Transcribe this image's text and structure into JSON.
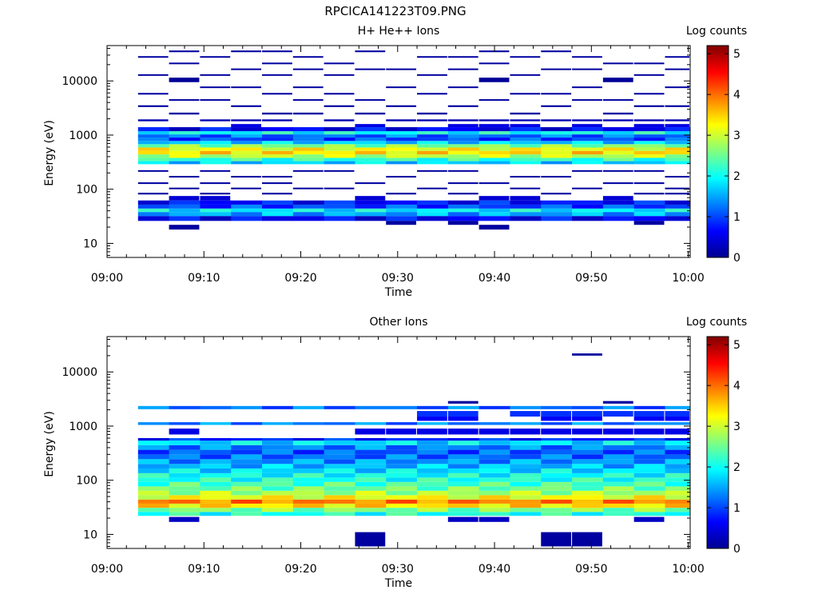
{
  "page": {
    "title": "RPCICA141223T09.PNG"
  },
  "colors": {
    "colormap": [
      "#00008f",
      "#0000ff",
      "#0080ff",
      "#00ffff",
      "#80ff80",
      "#ffff00",
      "#ff8000",
      "#ff0000",
      "#800000"
    ],
    "frame": "#000000",
    "background": "#ffffff"
  },
  "chart_data": [
    {
      "type": "heatmap",
      "title": "H+ He++ Ions",
      "xlabel": "Time",
      "ylabel": "Energy (eV)",
      "x_tick_labels": [
        "09:00",
        "09:10",
        "09:20",
        "09:30",
        "09:40",
        "09:50",
        "10:00"
      ],
      "xlim_minutes": [
        0,
        60.2
      ],
      "y_scale": "log",
      "ylim": [
        5.5,
        45000
      ],
      "y_tick_labels": [
        "10",
        "100",
        "1000",
        "10000"
      ],
      "colorbar": {
        "label": "Log counts",
        "range": [
          0,
          5.2
        ],
        "tick_labels": [
          "0",
          "1",
          "2",
          "3",
          "4",
          "5"
        ]
      },
      "time_bins_minutes": [
        3.2,
        6.4,
        9.6,
        12.8,
        16.0,
        19.2,
        22.4,
        25.6,
        28.8,
        32.0,
        35.2,
        38.4,
        41.6,
        44.8,
        48.0,
        51.2,
        54.4,
        57.6,
        60.2
      ],
      "energy_profile": [
        {
          "e_lo": 26,
          "e_hi": 32,
          "v": 0.6
        },
        {
          "e_lo": 32,
          "e_hi": 38,
          "v": 1.5
        },
        {
          "e_lo": 38,
          "e_hi": 44,
          "v": 1.9
        },
        {
          "e_lo": 44,
          "e_hi": 52,
          "v": 1.0
        },
        {
          "e_lo": 52,
          "e_hi": 62,
          "v": 0.7
        },
        {
          "e_lo": 290,
          "e_hi": 330,
          "v": 1.7
        },
        {
          "e_lo": 330,
          "e_hi": 380,
          "v": 2.2
        },
        {
          "e_lo": 380,
          "e_hi": 440,
          "v": 2.9
        },
        {
          "e_lo": 440,
          "e_hi": 510,
          "v": 3.4
        },
        {
          "e_lo": 510,
          "e_hi": 590,
          "v": 3.2
        },
        {
          "e_lo": 590,
          "e_hi": 680,
          "v": 2.6
        },
        {
          "e_lo": 680,
          "e_hi": 780,
          "v": 1.7
        },
        {
          "e_lo": 780,
          "e_hi": 900,
          "v": 1.0
        },
        {
          "e_lo": 900,
          "e_hi": 1030,
          "v": 1.2
        },
        {
          "e_lo": 1030,
          "e_hi": 1180,
          "v": 2.0
        },
        {
          "e_lo": 1180,
          "e_hi": 1400,
          "v": 0.6
        }
      ],
      "sparse_rows": [
        {
          "e_lo": 18,
          "e_hi": 22,
          "bins": [
            1,
            11
          ],
          "v": 0.1
        },
        {
          "e_lo": 22,
          "e_hi": 26,
          "bins": [
            8,
            10,
            16
          ],
          "v": 0.1
        },
        {
          "e_lo": 62,
          "e_hi": 75,
          "bins": [
            1,
            2,
            7,
            11,
            12,
            15
          ],
          "v": 0.4
        },
        {
          "e_lo": 80,
          "e_hi": 86,
          "bins": [
            0,
            2,
            4,
            8,
            10,
            13,
            16,
            17
          ],
          "v": 0.1
        },
        {
          "e_lo": 100,
          "e_hi": 107,
          "bins": [
            1,
            3,
            5,
            6,
            9,
            12,
            14,
            17
          ],
          "v": 0.1
        },
        {
          "e_lo": 125,
          "e_hi": 134,
          "bins": [
            0,
            2,
            4,
            7,
            10,
            11,
            15,
            16
          ],
          "v": 0.1
        },
        {
          "e_lo": 165,
          "e_hi": 176,
          "bins": [
            1,
            3,
            4,
            8,
            12,
            13,
            17
          ],
          "v": 0.1
        },
        {
          "e_lo": 210,
          "e_hi": 225,
          "bins": [
            0,
            2,
            5,
            6,
            9,
            10,
            14,
            15,
            16
          ],
          "v": 0.1
        },
        {
          "e_lo": 1400,
          "e_hi": 1600,
          "bins": [
            3,
            7,
            10,
            11,
            12,
            14,
            16,
            17
          ],
          "v": 0.5
        },
        {
          "e_lo": 1800,
          "e_hi": 1950,
          "bins": [
            0,
            2,
            3,
            4,
            6,
            8,
            9,
            10,
            11,
            12,
            13,
            14,
            15,
            16,
            17
          ],
          "v": 0.2
        },
        {
          "e_lo": 2400,
          "e_hi": 2600,
          "bins": [
            1,
            4,
            5,
            7,
            9,
            12,
            15
          ],
          "v": 0.1
        },
        {
          "e_lo": 3300,
          "e_hi": 3550,
          "bins": [
            0,
            3,
            6,
            8,
            10,
            13,
            16,
            17
          ],
          "v": 0.1
        },
        {
          "e_lo": 4300,
          "e_hi": 4600,
          "bins": [
            1,
            2,
            5,
            7,
            11,
            14,
            15
          ],
          "v": 0.1
        },
        {
          "e_lo": 5600,
          "e_hi": 6000,
          "bins": [
            0,
            4,
            6,
            9,
            12,
            13,
            16
          ],
          "v": 0.1
        },
        {
          "e_lo": 7400,
          "e_hi": 7900,
          "bins": [
            2,
            3,
            5,
            8,
            10,
            14,
            17
          ],
          "v": 0.1
        },
        {
          "e_lo": 9500,
          "e_hi": 11500,
          "bins": [
            1,
            11,
            15
          ],
          "v": 0.05
        },
        {
          "e_lo": 12500,
          "e_hi": 13300,
          "bins": [
            0,
            2,
            4,
            6,
            9,
            12,
            16
          ],
          "v": 0.1
        },
        {
          "e_lo": 16000,
          "e_hi": 17000,
          "bins": [
            3,
            5,
            7,
            8,
            10,
            13,
            14,
            17
          ],
          "v": 0.1
        },
        {
          "e_lo": 20500,
          "e_hi": 21800,
          "bins": [
            1,
            4,
            6,
            11,
            15,
            16
          ],
          "v": 0.1
        },
        {
          "e_lo": 27000,
          "e_hi": 28700,
          "bins": [
            0,
            2,
            5,
            9,
            10,
            12,
            14,
            17
          ],
          "v": 0.1
        },
        {
          "e_lo": 34000,
          "e_hi": 36500,
          "bins": [
            1,
            3,
            4,
            7,
            11,
            13
          ],
          "v": 0.1
        }
      ]
    },
    {
      "type": "heatmap",
      "title": "Other Ions",
      "xlabel": "Time",
      "ylabel": "Energy (eV)",
      "x_tick_labels": [
        "09:00",
        "09:10",
        "09:20",
        "09:30",
        "09:40",
        "09:50",
        "10:00"
      ],
      "xlim_minutes": [
        0,
        60.2
      ],
      "y_scale": "log",
      "ylim": [
        5.5,
        45000
      ],
      "y_tick_labels": [
        "10",
        "100",
        "1000",
        "10000"
      ],
      "colorbar": {
        "label": "Log counts",
        "range": [
          0,
          5.2
        ],
        "tick_labels": [
          "0",
          "1",
          "2",
          "3",
          "4",
          "5"
        ]
      },
      "time_bins_minutes": [
        3.2,
        6.4,
        9.6,
        12.8,
        16.0,
        19.2,
        22.4,
        25.6,
        28.8,
        32.0,
        35.2,
        38.4,
        41.6,
        44.8,
        48.0,
        51.2,
        54.4,
        57.6,
        60.2
      ],
      "energy_profile": [
        {
          "e_lo": 22,
          "e_hi": 26,
          "v": 2.1
        },
        {
          "e_lo": 26,
          "e_hi": 31,
          "v": 2.6
        },
        {
          "e_lo": 31,
          "e_hi": 37,
          "v": 3.4
        },
        {
          "e_lo": 37,
          "e_hi": 44,
          "v": 3.9
        },
        {
          "e_lo": 44,
          "e_hi": 53,
          "v": 3.2
        },
        {
          "e_lo": 53,
          "e_hi": 64,
          "v": 2.8
        },
        {
          "e_lo": 64,
          "e_hi": 77,
          "v": 2.5
        },
        {
          "e_lo": 77,
          "e_hi": 93,
          "v": 2.3
        },
        {
          "e_lo": 93,
          "e_hi": 112,
          "v": 2.1
        },
        {
          "e_lo": 112,
          "e_hi": 135,
          "v": 2.0
        },
        {
          "e_lo": 135,
          "e_hi": 165,
          "v": 1.8
        },
        {
          "e_lo": 165,
          "e_hi": 200,
          "v": 1.6
        },
        {
          "e_lo": 200,
          "e_hi": 245,
          "v": 1.4
        },
        {
          "e_lo": 245,
          "e_hi": 300,
          "v": 1.2
        },
        {
          "e_lo": 300,
          "e_hi": 365,
          "v": 1.1
        },
        {
          "e_lo": 365,
          "e_hi": 445,
          "v": 1.3
        },
        {
          "e_lo": 445,
          "e_hi": 540,
          "v": 1.8
        },
        {
          "e_lo": 540,
          "e_hi": 600,
          "v": 0.8
        },
        {
          "e_lo": 1050,
          "e_hi": 1180,
          "v": 1.3
        },
        {
          "e_lo": 2050,
          "e_hi": 2350,
          "v": 1.2
        }
      ],
      "sparse_rows": [
        {
          "e_lo": 6,
          "e_hi": 11,
          "bins": [
            7,
            13,
            14
          ],
          "v": 0.1
        },
        {
          "e_lo": 17,
          "e_hi": 21,
          "bins": [
            1,
            10,
            11,
            16
          ],
          "v": 0.3
        },
        {
          "e_lo": 700,
          "e_hi": 900,
          "bins": [
            1,
            7,
            8,
            9,
            10,
            11,
            12,
            13,
            14,
            15,
            16,
            17
          ],
          "v": 0.5
        },
        {
          "e_lo": 1250,
          "e_hi": 1500,
          "bins": [
            9,
            10,
            13,
            14,
            16,
            17
          ],
          "v": 0.6
        },
        {
          "e_lo": 1500,
          "e_hi": 1900,
          "bins": [
            9,
            10,
            12,
            13,
            14,
            15,
            16,
            17
          ],
          "v": 0.9
        },
        {
          "e_lo": 2600,
          "e_hi": 2900,
          "bins": [
            10,
            15
          ],
          "v": 0.1
        },
        {
          "e_lo": 20000,
          "e_hi": 22000,
          "bins": [
            14
          ],
          "v": 0.1
        }
      ]
    }
  ]
}
